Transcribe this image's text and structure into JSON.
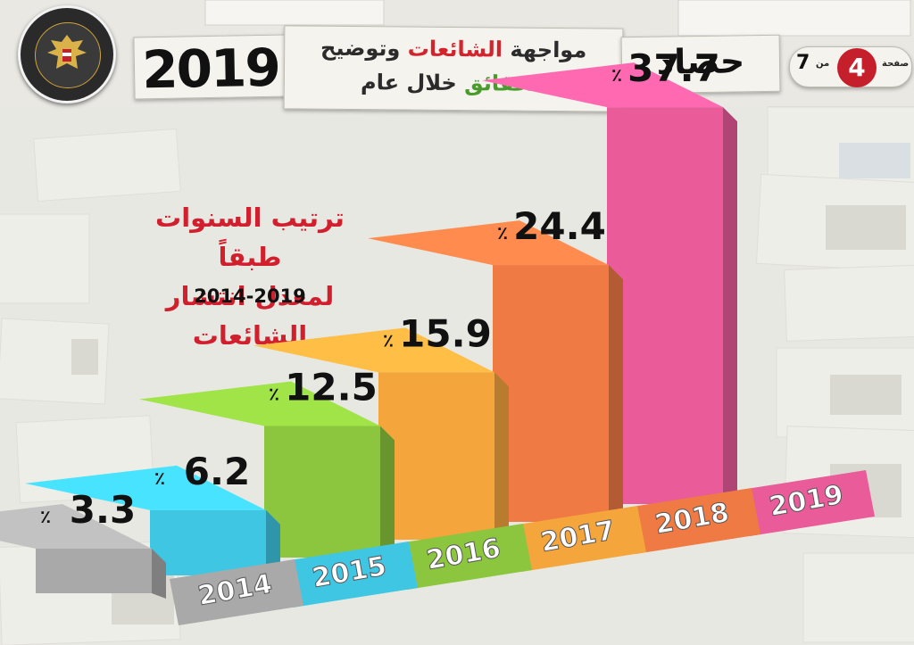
{
  "header": {
    "year_badge": "2019",
    "title_line1_part1": "مواجهة",
    "title_line1_part2": "الشائعات",
    "title_line1_part3": "وتوضيح",
    "title_line2_part1": "الحقائق",
    "title_line2_part2": "خلال عام",
    "harvest_label": "حصاد",
    "page_label": "صفحة",
    "page_number": "4",
    "page_of": "من",
    "page_total": "7"
  },
  "chart_data": {
    "type": "bar",
    "title": "ترتيب السنوات طبقاً لمعدل انتشار الشائعات",
    "subtitle": "2014-2019",
    "categories": [
      "2014",
      "2015",
      "2016",
      "2017",
      "2018",
      "2019"
    ],
    "values": [
      3.3,
      6.2,
      12.5,
      15.9,
      24.4,
      37.7
    ],
    "value_labels": [
      "3.3",
      "6.2",
      "12.5",
      "15.9",
      "24.4",
      "37.7"
    ],
    "unit": "٪",
    "colors": [
      "#a9a9a9",
      "#3fc6e3",
      "#8cc63f",
      "#f4a53c",
      "#ef7a44",
      "#ea5b9a"
    ],
    "grid": false,
    "legend": "none"
  },
  "heading": {
    "line1": "ترتيب السنوات طبقاً",
    "line2": "لمعدل انتشار الشائعات",
    "range": "2014-2019"
  },
  "icons": {
    "seal": "egypt-cabinet-seal-icon"
  }
}
